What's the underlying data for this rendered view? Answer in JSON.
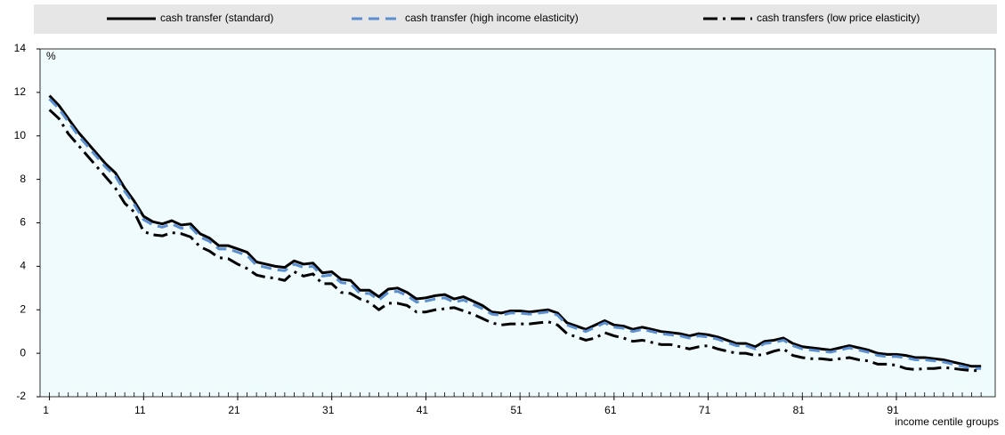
{
  "chart_data": {
    "type": "line",
    "x_label": "income centile groups",
    "y_label": "%",
    "x": [
      1,
      2,
      3,
      4,
      5,
      6,
      7,
      8,
      9,
      10,
      11,
      12,
      13,
      14,
      15,
      16,
      17,
      18,
      19,
      20,
      21,
      22,
      23,
      24,
      25,
      26,
      27,
      28,
      29,
      30,
      31,
      32,
      33,
      34,
      35,
      36,
      37,
      38,
      39,
      40,
      41,
      42,
      43,
      44,
      45,
      46,
      47,
      48,
      49,
      50,
      51,
      52,
      53,
      54,
      55,
      56,
      57,
      58,
      59,
      60,
      61,
      62,
      63,
      64,
      65,
      66,
      67,
      68,
      69,
      70,
      71,
      72,
      73,
      74,
      75,
      76,
      77,
      78,
      79,
      80,
      81,
      82,
      83,
      84,
      85,
      86,
      87,
      88,
      89,
      90,
      91,
      92,
      93,
      94,
      95,
      96,
      97,
      98,
      99,
      100
    ],
    "xlim": [
      0,
      101.5
    ],
    "xticks": [
      1,
      11,
      21,
      31,
      41,
      51,
      61,
      71,
      81,
      91
    ],
    "ylim": [
      -2,
      14
    ],
    "yticks": [
      -2,
      0,
      2,
      4,
      6,
      8,
      10,
      12,
      14
    ],
    "series": [
      {
        "name": "cash transfer (standard)",
        "color": "#000000",
        "style": "solid",
        "values": [
          11.85,
          11.4,
          10.8,
          10.2,
          9.7,
          9.2,
          8.7,
          8.3,
          7.6,
          7.0,
          6.3,
          6.05,
          5.95,
          6.1,
          5.9,
          5.95,
          5.5,
          5.3,
          4.95,
          4.95,
          4.8,
          4.65,
          4.2,
          4.1,
          4.0,
          3.95,
          4.25,
          4.1,
          4.15,
          3.7,
          3.75,
          3.4,
          3.35,
          2.9,
          2.9,
          2.6,
          2.95,
          3.0,
          2.8,
          2.5,
          2.55,
          2.65,
          2.7,
          2.5,
          2.6,
          2.4,
          2.2,
          1.9,
          1.85,
          1.95,
          1.95,
          1.9,
          1.95,
          2.0,
          1.85,
          1.4,
          1.25,
          1.1,
          1.3,
          1.5,
          1.3,
          1.25,
          1.1,
          1.2,
          1.1,
          1.0,
          0.95,
          0.9,
          0.8,
          0.9,
          0.85,
          0.75,
          0.6,
          0.45,
          0.45,
          0.3,
          0.55,
          0.6,
          0.7,
          0.45,
          0.3,
          0.25,
          0.2,
          0.15,
          0.25,
          0.35,
          0.25,
          0.15,
          0.0,
          -0.05,
          -0.05,
          -0.1,
          -0.2,
          -0.2,
          -0.25,
          -0.3,
          -0.4,
          -0.5,
          -0.6,
          -0.6
        ]
      },
      {
        "name": "cash transfer (high income elasticity)",
        "color": "#5b8fd0",
        "style": "dashed",
        "values": [
          11.7,
          11.25,
          10.65,
          10.05,
          9.55,
          9.05,
          8.55,
          8.15,
          7.45,
          6.85,
          6.15,
          5.9,
          5.8,
          5.95,
          5.75,
          5.8,
          5.35,
          5.15,
          4.8,
          4.8,
          4.65,
          4.5,
          4.05,
          3.95,
          3.85,
          3.8,
          4.1,
          3.95,
          4.0,
          3.55,
          3.6,
          3.25,
          3.2,
          2.75,
          2.75,
          2.45,
          2.8,
          2.85,
          2.65,
          2.35,
          2.4,
          2.5,
          2.55,
          2.35,
          2.45,
          2.25,
          2.05,
          1.8,
          1.75,
          1.85,
          1.85,
          1.8,
          1.85,
          1.9,
          1.75,
          1.3,
          1.15,
          1.0,
          1.2,
          1.4,
          1.2,
          1.15,
          1.0,
          1.1,
          1.0,
          0.9,
          0.85,
          0.8,
          0.7,
          0.8,
          0.75,
          0.65,
          0.5,
          0.35,
          0.35,
          0.2,
          0.45,
          0.5,
          0.6,
          0.35,
          0.2,
          0.15,
          0.1,
          0.05,
          0.15,
          0.25,
          0.15,
          0.05,
          -0.1,
          -0.15,
          -0.15,
          -0.2,
          -0.3,
          -0.3,
          -0.35,
          -0.4,
          -0.5,
          -0.6,
          -0.7,
          -0.7
        ]
      },
      {
        "name": "cash transfers (low price elasticity)",
        "color": "#000000",
        "style": "dashdot",
        "values": [
          11.2,
          10.8,
          10.1,
          9.6,
          9.1,
          8.6,
          8.1,
          7.6,
          6.9,
          6.5,
          5.6,
          5.45,
          5.4,
          5.55,
          5.5,
          5.35,
          4.9,
          4.7,
          4.4,
          4.35,
          4.1,
          3.9,
          3.6,
          3.5,
          3.45,
          3.35,
          3.75,
          3.55,
          3.65,
          3.2,
          3.2,
          2.8,
          2.75,
          2.5,
          2.35,
          2.0,
          2.3,
          2.3,
          2.2,
          1.9,
          1.9,
          2.0,
          2.05,
          2.1,
          1.95,
          1.8,
          1.6,
          1.4,
          1.3,
          1.35,
          1.35,
          1.35,
          1.4,
          1.45,
          1.3,
          0.9,
          0.75,
          0.6,
          0.7,
          0.95,
          0.8,
          0.7,
          0.55,
          0.6,
          0.5,
          0.4,
          0.4,
          0.3,
          0.2,
          0.3,
          0.35,
          0.2,
          0.1,
          0.0,
          0.0,
          -0.1,
          -0.05,
          0.1,
          0.2,
          -0.1,
          -0.2,
          -0.25,
          -0.25,
          -0.3,
          -0.25,
          -0.2,
          -0.3,
          -0.35,
          -0.5,
          -0.5,
          -0.55,
          -0.7,
          -0.75,
          -0.7,
          -0.7,
          -0.65,
          -0.7,
          -0.75,
          -0.8,
          -0.8
        ]
      }
    ]
  }
}
